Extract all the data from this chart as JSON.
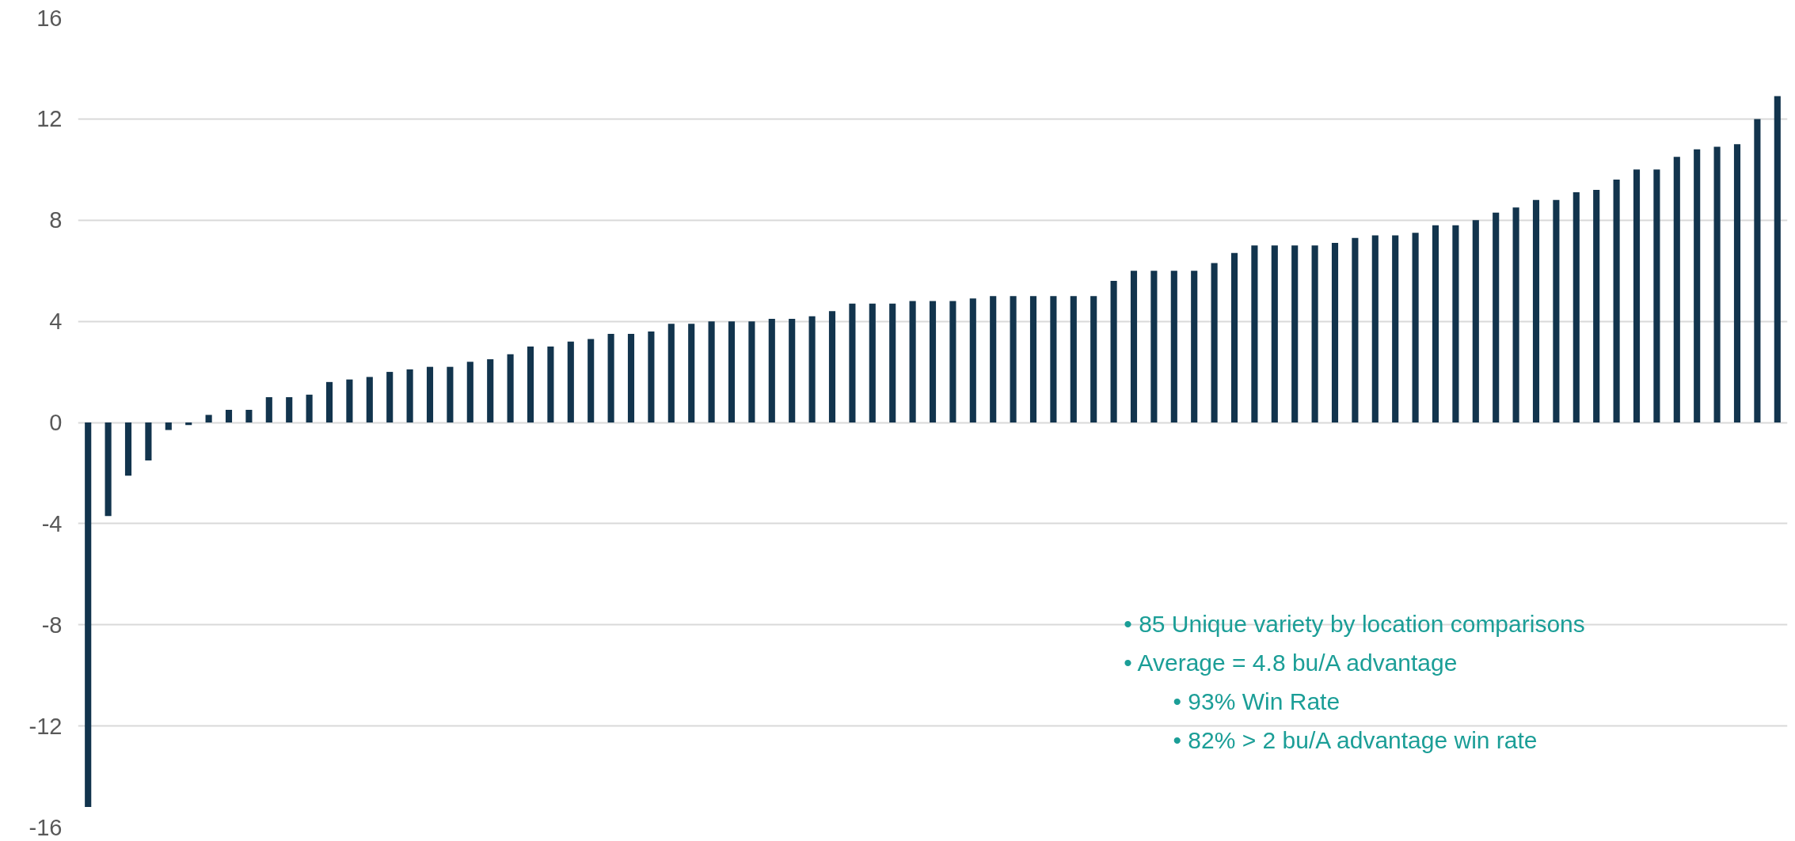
{
  "chart_data": {
    "type": "bar",
    "categories": [
      null,
      null,
      null,
      null,
      null,
      null,
      null,
      null,
      null,
      null,
      null,
      null,
      null,
      null,
      null,
      null,
      null,
      null,
      null,
      null,
      null,
      null,
      null,
      null,
      null,
      null,
      null,
      null,
      null,
      null,
      null,
      null,
      null,
      null,
      null,
      null,
      null,
      null,
      null,
      null,
      null,
      null,
      null,
      null,
      null,
      null,
      null,
      null,
      null,
      null,
      null,
      null,
      null,
      null,
      null,
      null,
      null,
      null,
      null,
      null,
      null,
      null,
      null,
      null,
      null,
      null,
      null,
      null,
      null,
      null,
      null,
      null,
      null,
      null,
      null,
      null,
      null,
      null,
      null,
      null,
      null,
      null,
      null,
      null,
      null
    ],
    "values": [
      -15.2,
      -3.7,
      -2.1,
      -1.5,
      -0.3,
      -0.1,
      0.3,
      0.5,
      0.5,
      1.0,
      1.0,
      1.1,
      1.6,
      1.7,
      1.8,
      2.0,
      2.1,
      2.2,
      2.2,
      2.4,
      2.5,
      2.7,
      3.0,
      3.0,
      3.2,
      3.3,
      3.5,
      3.5,
      3.6,
      3.9,
      3.9,
      4.0,
      4.0,
      4.0,
      4.1,
      4.1,
      4.2,
      4.4,
      4.7,
      4.7,
      4.7,
      4.8,
      4.8,
      4.8,
      4.9,
      5.0,
      5.0,
      5.0,
      5.0,
      5.0,
      5.0,
      5.6,
      6.0,
      6.0,
      6.0,
      6.0,
      6.3,
      6.7,
      7.0,
      7.0,
      7.0,
      7.0,
      7.1,
      7.3,
      7.4,
      7.4,
      7.5,
      7.8,
      7.8,
      8.0,
      8.3,
      8.5,
      8.8,
      8.8,
      9.1,
      9.2,
      9.6,
      10.0,
      10.0,
      10.5,
      10.8,
      10.9,
      11.0,
      12.0,
      12.9
    ],
    "color": "#12344d",
    "ylim": [
      -16,
      16
    ],
    "yticks": [
      -16,
      -12,
      -8,
      -4,
      0,
      4,
      8,
      12,
      16
    ],
    "grid": "y",
    "annotations": [
      "•    85 Unique variety by location comparisons",
      "•    Average = 4.8 bu/A advantage",
      "•      93% Win Rate",
      "•      82% > 2 bu/A advantage win rate"
    ]
  }
}
